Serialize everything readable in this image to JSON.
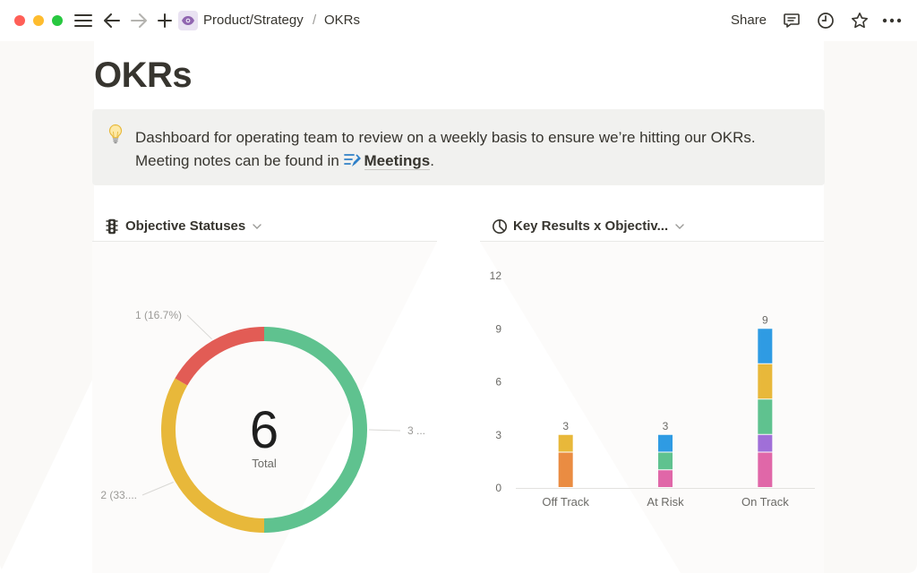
{
  "window": {
    "traffic_colors": {
      "close": "#ff5f57",
      "minimize": "#febc2e",
      "zoom": "#28c840"
    }
  },
  "topbar": {
    "icons": [
      "menu-icon",
      "back-arrow-icon",
      "forward-arrow-icon",
      "plus-icon",
      "eye-icon",
      "comment-icon",
      "clock-icon",
      "star-icon",
      "more-icon"
    ],
    "breadcrumb_parent": "Product/Strategy",
    "breadcrumb_separator": "/",
    "breadcrumb_current": "OKRs",
    "share_label": "Share"
  },
  "page": {
    "title": "OKRs",
    "callout": {
      "icon": "lightbulb-icon",
      "line1": "Dashboard for operating team to review on a weekly basis to ensure we’re hitting our OKRs.",
      "line2_prefix": "Meeting notes can be found in",
      "link_icon": "meetings-icon",
      "link_text": "Meetings",
      "line2_suffix": "."
    }
  },
  "charts": {
    "left_header": {
      "icon": "traffic-light-icon",
      "title": "Objective Statuses"
    },
    "right_header": {
      "icon": "pie-chart-icon",
      "title": "Key Results x Objectiv..."
    }
  },
  "chart_data": [
    {
      "type": "pie",
      "variant": "donut",
      "center_value": "6",
      "center_label": "Total",
      "slices": [
        {
          "value": 3,
          "color": "#5fc28f",
          "label": "3 ..."
        },
        {
          "value": 2,
          "color": "#e8b83a",
          "label": "2 (33...."
        },
        {
          "value": 1,
          "color": "#e25c55",
          "label": "1 (16.7%)"
        }
      ]
    },
    {
      "type": "bar",
      "stacked": true,
      "categories": [
        "Off Track",
        "At Risk",
        "On Track"
      ],
      "totals": [
        3,
        3,
        9
      ],
      "ylim": [
        0,
        12
      ],
      "yticks": [
        0,
        3,
        6,
        9,
        12
      ],
      "grid": false,
      "segments": [
        [
          {
            "value": 2,
            "color": "#ea8c42"
          },
          {
            "value": 1,
            "color": "#e8b83a"
          }
        ],
        [
          {
            "value": 1,
            "color": "#e067a8"
          },
          {
            "value": 1,
            "color": "#5fc28f"
          },
          {
            "value": 1,
            "color": "#2f9be3"
          }
        ],
        [
          {
            "value": 2,
            "color": "#e067a8"
          },
          {
            "value": 1,
            "color": "#a06fd8"
          },
          {
            "value": 2,
            "color": "#5fc28f"
          },
          {
            "value": 2,
            "color": "#e8b83a"
          },
          {
            "value": 2,
            "color": "#2f9be3"
          }
        ]
      ]
    }
  ]
}
